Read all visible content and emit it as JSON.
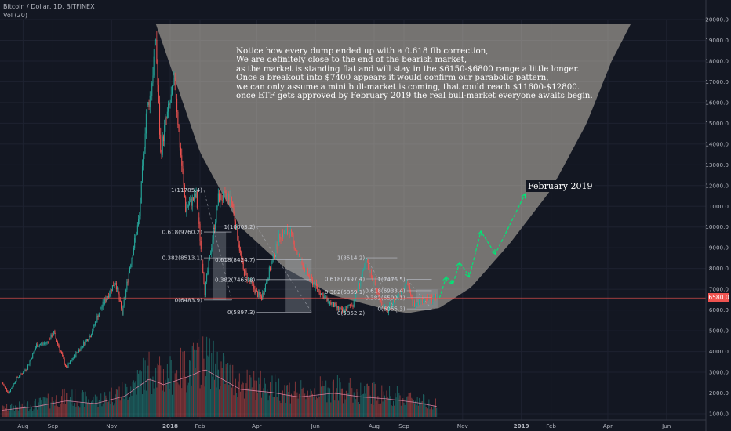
{
  "header": {
    "symbol": "Bitcoin / Dollar, 1D, BITFINEX",
    "volume_label": "Vol (20)"
  },
  "note_lines": [
    "Notice how every dump ended up with a 0.618 fib correction,",
    "We are definitely close to the end of the bearish market,",
    "as the market is standing flat and will stay in the $6150-$6800 range a little longer.",
    "Once a breakout into $7400 appears it would confirm our parabolic pattern,",
    "we can only assume a mini bull-market is coming, that could reach $11600-$12800.",
    "once ETF gets approved by February 2019 the real bull-market everyone awaits begin."
  ],
  "annotation_label": "February 2019",
  "current_price_label": "6580.0",
  "colors": {
    "background": "#131722",
    "up": "#26a69a",
    "down": "#ef5350",
    "bowl": "#d8d0c0",
    "projection": "#00e676",
    "price_line": "#ef5350",
    "ma": "#f48fb1"
  },
  "chart_data": {
    "type": "candlestick",
    "title": "Bitcoin / Dollar, 1D, BITFINEX",
    "ylim": [
      1000,
      20000
    ],
    "y_ticks": [
      "1000.0",
      "2000.0",
      "3000.0",
      "4000.0",
      "5000.0",
      "6000.0",
      "7000.0",
      "8000.0",
      "9000.0",
      "10000.0",
      "11000.0",
      "12000.0",
      "13000.0",
      "14000.0",
      "15000.0",
      "16000.0",
      "17000.0",
      "18000.0",
      "19000.0",
      "20000.0"
    ],
    "x_ticks": [
      "Aug",
      "Sep",
      "Nov",
      "2018",
      "Feb",
      "Apr",
      "Jun",
      "Aug",
      "Sep",
      "Nov",
      "2019",
      "Feb",
      "Apr",
      "Jun"
    ],
    "x_tick_dates": [
      "2017-08-01",
      "2017-09-01",
      "2017-11-01",
      "2018-01-01",
      "2018-02-01",
      "2018-04-01",
      "2018-06-01",
      "2018-08-01",
      "2018-09-01",
      "2018-11-01",
      "2019-01-01",
      "2019-02-01",
      "2019-04-01",
      "2019-06-01"
    ],
    "x_range": [
      "2017-07-08",
      "2019-07-12"
    ],
    "price_path": [
      [
        "2017-07-10",
        2500
      ],
      [
        "2017-07-17",
        2000
      ],
      [
        "2017-07-25",
        2700
      ],
      [
        "2017-08-05",
        3200
      ],
      [
        "2017-08-15",
        4300
      ],
      [
        "2017-08-25",
        4400
      ],
      [
        "2017-09-02",
        4900
      ],
      [
        "2017-09-15",
        3200
      ],
      [
        "2017-09-25",
        3900
      ],
      [
        "2017-10-10",
        4800
      ],
      [
        "2017-10-20",
        6000
      ],
      [
        "2017-11-05",
        7400
      ],
      [
        "2017-11-12",
        5800
      ],
      [
        "2017-11-20",
        8100
      ],
      [
        "2017-11-30",
        10500
      ],
      [
        "2017-12-07",
        15500
      ],
      [
        "2017-12-12",
        16500
      ],
      [
        "2017-12-17",
        19100
      ],
      [
        "2017-12-22",
        13500
      ],
      [
        "2017-12-27",
        15000
      ],
      [
        "2018-01-06",
        17000
      ],
      [
        "2018-01-10",
        14500
      ],
      [
        "2018-01-17",
        10900
      ],
      [
        "2018-01-28",
        11500
      ],
      [
        "2018-02-06",
        6900
      ],
      [
        "2018-02-20",
        11400
      ],
      [
        "2018-03-05",
        11500
      ],
      [
        "2018-03-18",
        7900
      ],
      [
        "2018-04-01",
        6800
      ],
      [
        "2018-04-06",
        6600
      ],
      [
        "2018-04-25",
        9600
      ],
      [
        "2018-05-05",
        9800
      ],
      [
        "2018-05-15",
        8500
      ],
      [
        "2018-05-28",
        7400
      ],
      [
        "2018-06-12",
        6500
      ],
      [
        "2018-06-29",
        5900
      ],
      [
        "2018-07-10",
        6300
      ],
      [
        "2018-07-24",
        8300
      ],
      [
        "2018-08-10",
        6200
      ],
      [
        "2018-08-14",
        5900
      ],
      [
        "2018-09-04",
        7400
      ],
      [
        "2018-09-10",
        6300
      ],
      [
        "2018-09-20",
        6500
      ],
      [
        "2018-10-05",
        6580
      ]
    ],
    "volume_profile": [
      [
        "2017-07-10",
        0.14
      ],
      [
        "2017-08-15",
        0.22
      ],
      [
        "2017-09-15",
        0.34
      ],
      [
        "2017-10-15",
        0.28
      ],
      [
        "2017-11-15",
        0.44
      ],
      [
        "2017-12-10",
        0.8
      ],
      [
        "2017-12-25",
        0.68
      ],
      [
        "2018-01-20",
        0.85
      ],
      [
        "2018-02-06",
        1.0
      ],
      [
        "2018-03-15",
        0.58
      ],
      [
        "2018-04-15",
        0.52
      ],
      [
        "2018-05-15",
        0.42
      ],
      [
        "2018-06-20",
        0.5
      ],
      [
        "2018-07-20",
        0.42
      ],
      [
        "2018-08-15",
        0.38
      ],
      [
        "2018-09-15",
        0.3
      ],
      [
        "2018-10-05",
        0.22
      ]
    ],
    "projection_path": [
      [
        "2018-10-08",
        6580
      ],
      [
        "2018-10-15",
        7600
      ],
      [
        "2018-10-22",
        7250
      ],
      [
        "2018-10-29",
        8300
      ],
      [
        "2018-11-08",
        7600
      ],
      [
        "2018-11-20",
        9800
      ],
      [
        "2018-12-05",
        8700
      ],
      [
        "2019-01-05",
        11600
      ]
    ],
    "cup_curve": [
      [
        "2017-12-17",
        19800
      ],
      [
        "2018-02-01",
        13600
      ],
      [
        "2018-03-15",
        10000
      ],
      [
        "2018-05-01",
        8000
      ],
      [
        "2018-06-20",
        6700
      ],
      [
        "2018-08-15",
        6000
      ],
      [
        "2018-09-05",
        5850
      ],
      [
        "2018-10-08",
        6100
      ],
      [
        "2018-11-10",
        7100
      ],
      [
        "2018-12-20",
        9200
      ],
      [
        "2019-02-01",
        11800
      ],
      [
        "2019-03-10",
        15000
      ],
      [
        "2019-04-05",
        18000
      ],
      [
        "2019-04-25",
        19800
      ]
    ],
    "current_price": 6580,
    "fib_sets": [
      {
        "x_range": [
          "2018-02-05",
          "2018-03-06"
        ],
        "labels": [
          "1(11785.4)",
          "0.618(9760.2)",
          "0.382(8513.1)",
          "0(6483.9)"
        ],
        "levels": [
          11785.4,
          9760.2,
          8513.1,
          6483.9
        ]
      },
      {
        "x_range": [
          "2018-04-01",
          "2018-05-28"
        ],
        "labels": [
          "1(10003.2)",
          "0.618(8424.7)",
          "0.382(7465.8)",
          "0(5897.3)"
        ],
        "levels": [
          10003.2,
          8424.7,
          7465.8,
          5897.3
        ]
      },
      {
        "x_range": [
          "2018-07-24",
          "2018-08-25"
        ],
        "labels": [
          "1(8514.2)",
          "0.618(7497.4)",
          "0.382(6869.1)",
          "0(5852.2)"
        ],
        "levels": [
          8514.2,
          7497.4,
          6869.1,
          5852.2
        ]
      },
      {
        "x_range": [
          "2018-09-04",
          "2018-09-30"
        ],
        "labels": [
          "1(7476.5)",
          "0.618(6933.4)",
          "0.382(6599.1)",
          "0(6055.3)"
        ],
        "levels": [
          7476.5,
          6933.4,
          6599.1,
          6055.3
        ]
      }
    ],
    "range_boxes": [
      {
        "x_range": [
          "2018-02-14",
          "2018-02-28"
        ],
        "y_range": [
          6483.9,
          9760.2
        ]
      },
      {
        "x_range": [
          "2018-05-01",
          "2018-05-28"
        ],
        "y_range": [
          5897.3,
          8424.7
        ]
      },
      {
        "x_range": [
          "2018-09-14",
          "2018-10-06"
        ],
        "y_range": [
          6100,
          7000
        ]
      }
    ]
  }
}
